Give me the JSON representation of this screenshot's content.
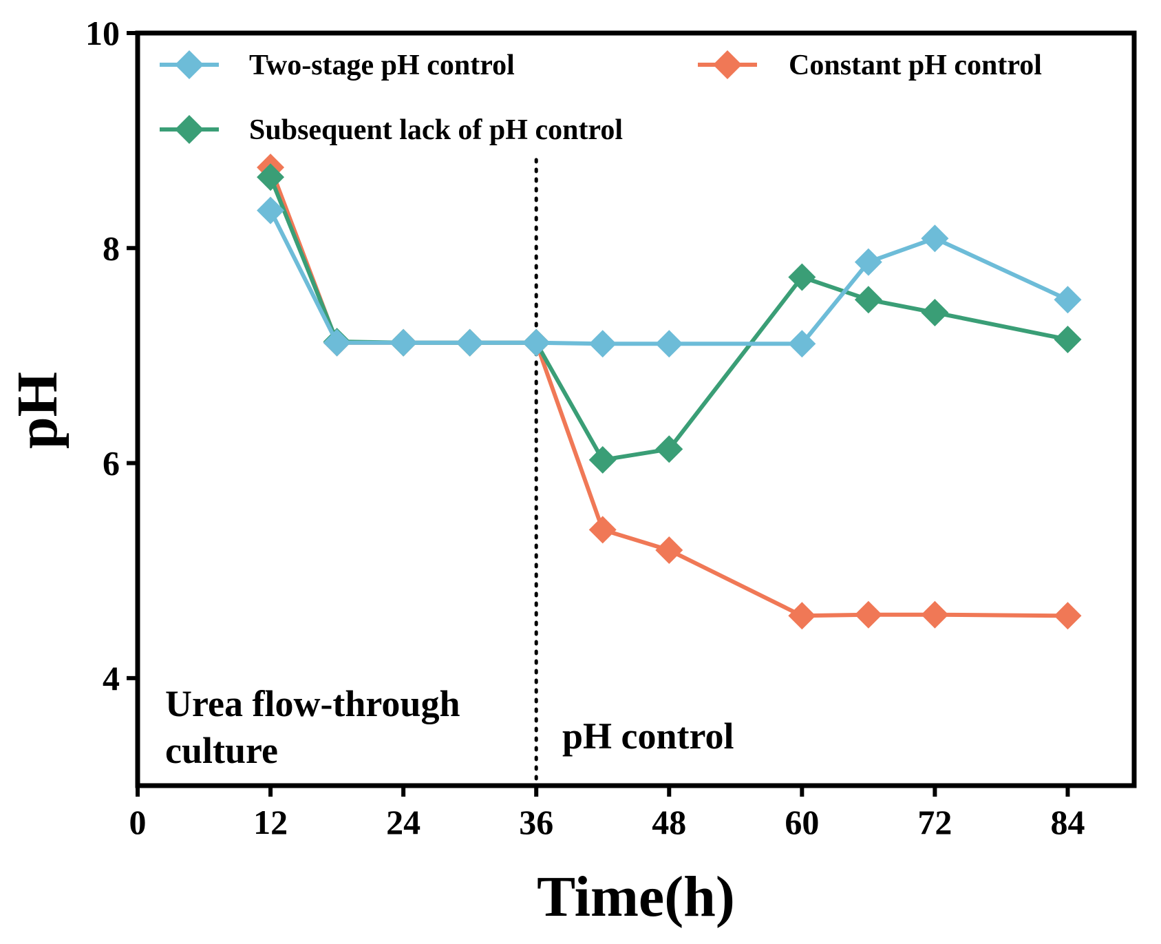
{
  "chart_data": {
    "type": "line",
    "title": "",
    "xlabel": "Time(h)",
    "ylabel": "pH",
    "xlim": [
      0,
      90
    ],
    "ylim": [
      3,
      10
    ],
    "xticks": [
      0,
      12,
      24,
      36,
      48,
      60,
      72,
      84
    ],
    "yticks": [
      4,
      6,
      8,
      10
    ],
    "grid": false,
    "legend_position": "top",
    "separator_x": 36,
    "annotations": {
      "left_line1": "Urea flow-through",
      "left_line2": "culture",
      "right": "pH control"
    },
    "colors": {
      "two_stage": "#6dbcd8",
      "constant": "#f07856",
      "subsequent": "#3a9e76"
    },
    "series": [
      {
        "name": "Two-stage pH control",
        "color": "#6dbcd8",
        "x": [
          12,
          18,
          24,
          30,
          36,
          42,
          48,
          60,
          66,
          72,
          84
        ],
        "y": [
          8.35,
          7.12,
          7.12,
          7.12,
          7.12,
          7.11,
          7.11,
          7.11,
          7.87,
          8.09,
          7.52
        ]
      },
      {
        "name": "Constant pH control",
        "color": "#f07856",
        "x": [
          12,
          18,
          24,
          30,
          36,
          42,
          48,
          60,
          66,
          72,
          84
        ],
        "y": [
          8.75,
          7.12,
          7.12,
          7.12,
          7.12,
          5.38,
          5.19,
          4.58,
          4.59,
          4.59,
          4.58
        ]
      },
      {
        "name": "Subsequent lack of pH control",
        "color": "#3a9e76",
        "x": [
          12,
          18,
          24,
          30,
          36,
          42,
          48,
          60,
          66,
          72,
          84
        ],
        "y": [
          8.66,
          7.13,
          7.12,
          7.12,
          7.12,
          6.03,
          6.13,
          7.73,
          7.52,
          7.4,
          7.15
        ]
      }
    ]
  }
}
